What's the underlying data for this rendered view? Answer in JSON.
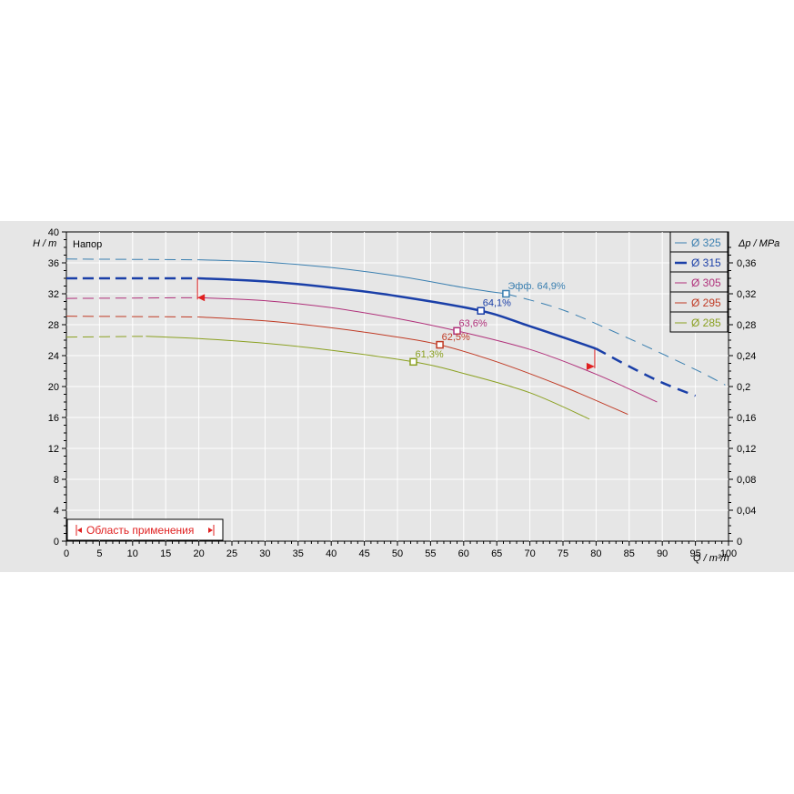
{
  "chart_data": {
    "type": "line",
    "ylabel_left": "H / m",
    "ylabel_right": "Δp / MPa",
    "xlabel": "Q / m³/h",
    "panel_label": "Напор",
    "range_label": "Область применения",
    "xlim": [
      0,
      100
    ],
    "ylim": [
      0,
      40
    ],
    "y2lim": [
      0,
      0.4
    ],
    "grid": true,
    "legend_position": "top-right",
    "x_ticks": [
      "0",
      "5",
      "10",
      "15",
      "20",
      "25",
      "30",
      "35",
      "40",
      "45",
      "50",
      "55",
      "60",
      "65",
      "70",
      "75",
      "80",
      "85",
      "90",
      "95",
      "100"
    ],
    "y_ticks": [
      "0",
      "4",
      "8",
      "12",
      "16",
      "20",
      "24",
      "28",
      "32",
      "36",
      "40"
    ],
    "y2_ticks": [
      "0",
      "0,04",
      "0,08",
      "0,12",
      "0,16",
      "0,2",
      "0,24",
      "0,28",
      "0,32",
      "0,36"
    ],
    "series": [
      {
        "name": "Ø 325",
        "color": "#3a7fb0",
        "width": 1,
        "dashed_head": [
          [
            0,
            36.5
          ],
          [
            20,
            36.4
          ]
        ],
        "points": [
          [
            20,
            36.4
          ],
          [
            30,
            36.1
          ],
          [
            40,
            35.4
          ],
          [
            50,
            34.3
          ],
          [
            60,
            32.8
          ],
          [
            66.4,
            32
          ]
        ],
        "dashed_tail": [
          [
            66.4,
            32
          ],
          [
            75,
            29.9
          ],
          [
            85,
            26.2
          ],
          [
            95,
            22.2
          ],
          [
            99.5,
            20.2
          ]
        ],
        "bep": {
          "x": 66.4,
          "y": 32,
          "label": "Эфф.  64,9%"
        }
      },
      {
        "name": "Ø 315",
        "color": "#1a3fa8",
        "width": 2.5,
        "dashed_head": [
          [
            0,
            34
          ],
          [
            20,
            34
          ]
        ],
        "points": [
          [
            20,
            34
          ],
          [
            30,
            33.6
          ],
          [
            40,
            32.8
          ],
          [
            50,
            31.7
          ],
          [
            62.6,
            29.8
          ],
          [
            70,
            27.8
          ],
          [
            80,
            24.9
          ]
        ],
        "dashed_tail": [
          [
            80,
            24.9
          ],
          [
            85,
            22.6
          ],
          [
            90,
            20.5
          ],
          [
            95,
            18.8
          ]
        ],
        "bep": {
          "x": 62.6,
          "y": 29.8,
          "label": "64,1%"
        }
      },
      {
        "name": "Ø 305",
        "color": "#b0307a",
        "width": 1,
        "dashed_head": [
          [
            0,
            31.4
          ],
          [
            20,
            31.5
          ]
        ],
        "points": [
          [
            20,
            31.5
          ],
          [
            30,
            31.1
          ],
          [
            40,
            30.2
          ],
          [
            50,
            28.8
          ],
          [
            59,
            27.2
          ],
          [
            70,
            24.8
          ],
          [
            80,
            21.6
          ],
          [
            89.2,
            18
          ]
        ],
        "dashed_tail": [],
        "bep": {
          "x": 59,
          "y": 27.2,
          "label": "63,6%"
        }
      },
      {
        "name": "Ø 295",
        "color": "#c03a24",
        "width": 1,
        "dashed_head": [
          [
            0,
            29.1
          ],
          [
            20,
            29
          ]
        ],
        "points": [
          [
            20,
            29
          ],
          [
            30,
            28.5
          ],
          [
            40,
            27.6
          ],
          [
            50,
            26.4
          ],
          [
            56.4,
            25.4
          ],
          [
            65,
            23.2
          ],
          [
            75,
            20
          ],
          [
            84.8,
            16.4
          ]
        ],
        "dashed_tail": [],
        "bep": {
          "x": 56.4,
          "y": 25.4,
          "label": "62,5%"
        }
      },
      {
        "name": "Ø 285",
        "color": "#8aa020",
        "width": 1,
        "dashed_head": [
          [
            0,
            26.4
          ],
          [
            12,
            26.5
          ]
        ],
        "points": [
          [
            12,
            26.5
          ],
          [
            20,
            26.2
          ],
          [
            30,
            25.6
          ],
          [
            40,
            24.7
          ],
          [
            52.4,
            23.2
          ],
          [
            60,
            21.7
          ],
          [
            70,
            19.2
          ],
          [
            79,
            15.8
          ]
        ],
        "dashed_tail": [],
        "bep": {
          "x": 52.4,
          "y": 23.2,
          "label": "61,3%"
        }
      }
    ],
    "range_markers": [
      {
        "x": 19.8,
        "y_top": 34,
        "y_marker": 31.5
      },
      {
        "x": 79.8,
        "y_top": 24.8,
        "y_marker": 22.6
      }
    ]
  }
}
